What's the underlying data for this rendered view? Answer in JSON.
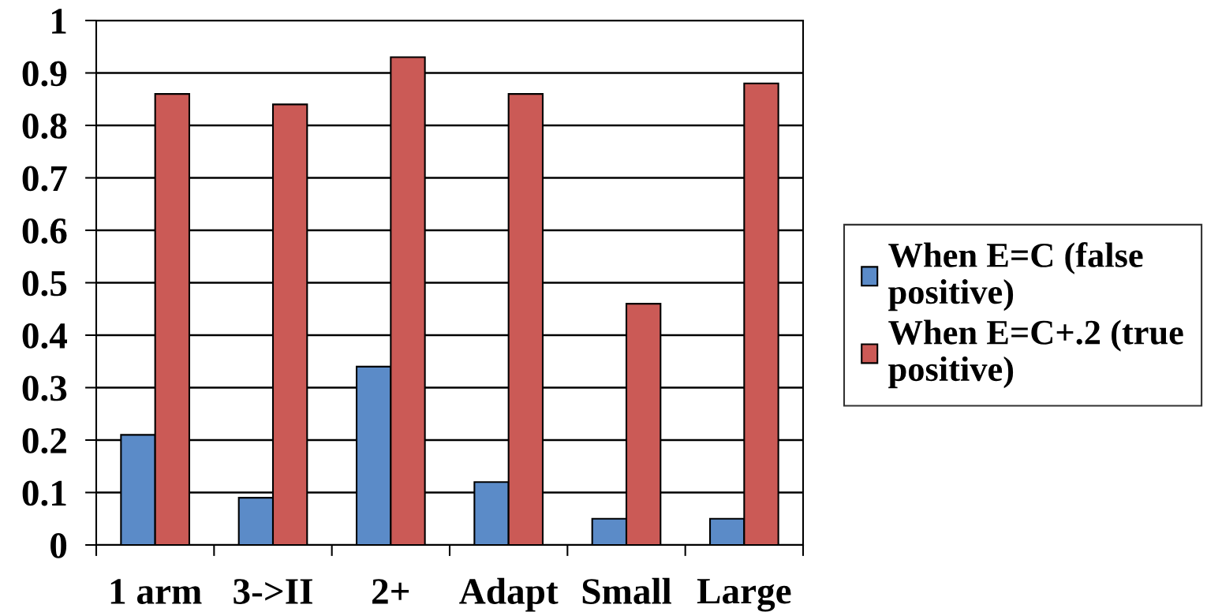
{
  "chart_data": {
    "type": "bar",
    "categories": [
      "1 arm",
      "3->II",
      "2+",
      "Adapt",
      "Small",
      "Large"
    ],
    "series": [
      {
        "name": "When E=C (false positive)",
        "color": "#5b8bc8",
        "values": [
          0.21,
          0.09,
          0.34,
          0.12,
          0.05,
          0.05
        ]
      },
      {
        "name": "When E=C+.2 (true positive)",
        "color": "#cb5a56",
        "values": [
          0.86,
          0.84,
          0.93,
          0.86,
          0.46,
          0.88
        ]
      }
    ],
    "ylim": [
      0,
      1
    ],
    "yticks": [
      0,
      0.1,
      0.2,
      0.3,
      0.4,
      0.5,
      0.6,
      0.7,
      0.8,
      0.9,
      1
    ],
    "grid": "y",
    "legend": "right"
  }
}
